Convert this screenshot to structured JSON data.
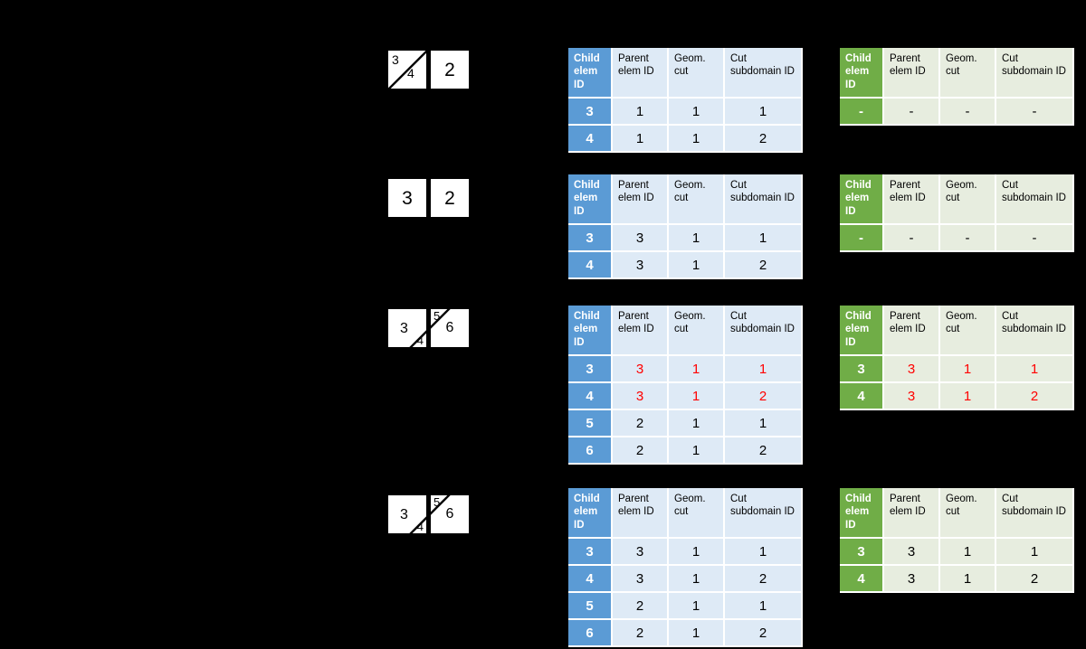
{
  "colors": {
    "background": "#000000",
    "element_fill": "#FFFFFF",
    "cut_line": "#000000",
    "blue_header": "#5B9BD5",
    "blue_body": "#DEEAF6",
    "green_header": "#70AD47",
    "green_body": "#E7EDDF",
    "highlight_red": "#FF0000"
  },
  "headers": [
    "Child elem ID",
    "Parent elem ID",
    "Geom. cut",
    "Cut subdomain ID"
  ],
  "groups": [
    {
      "diagram": {
        "left": {
          "cut": "diag",
          "labels": [
            {
              "text": "3",
              "pos": "tl"
            },
            {
              "text": "4",
              "pos": "lr"
            }
          ]
        },
        "right": {
          "cut": "none",
          "labels": [
            {
              "text": "2",
              "pos": "c"
            }
          ]
        }
      },
      "blue": [
        {
          "id": "3",
          "values": [
            "1",
            "1",
            "1"
          ],
          "red": false
        },
        {
          "id": "4",
          "values": [
            "1",
            "1",
            "2"
          ],
          "red": false
        }
      ],
      "green": [
        {
          "id": "-",
          "values": [
            "-",
            "-",
            "-"
          ],
          "red": false
        }
      ]
    },
    {
      "diagram": {
        "left": {
          "cut": "none",
          "labels": [
            {
              "text": "3",
              "pos": "c"
            }
          ]
        },
        "right": {
          "cut": "none",
          "labels": [
            {
              "text": "2",
              "pos": "c"
            }
          ]
        }
      },
      "blue": [
        {
          "id": "3",
          "values": [
            "3",
            "1",
            "1"
          ],
          "red": false
        },
        {
          "id": "4",
          "values": [
            "3",
            "1",
            "2"
          ],
          "red": false
        }
      ],
      "green": [
        {
          "id": "-",
          "values": [
            "-",
            "-",
            "-"
          ],
          "red": false
        }
      ]
    },
    {
      "diagram": {
        "left": {
          "cut": "corner-br",
          "labels": [
            {
              "text": "3",
              "pos": "cl"
            },
            {
              "text": "4",
              "pos": "br"
            }
          ]
        },
        "right": {
          "cut": "corner-tl",
          "labels": [
            {
              "text": "5",
              "pos": "ctl"
            },
            {
              "text": "6",
              "pos": "cs"
            }
          ]
        }
      },
      "blue": [
        {
          "id": "3",
          "values": [
            "3",
            "1",
            "1"
          ],
          "red": true
        },
        {
          "id": "4",
          "values": [
            "3",
            "1",
            "2"
          ],
          "red": true
        },
        {
          "id": "5",
          "values": [
            "2",
            "1",
            "1"
          ],
          "red": false
        },
        {
          "id": "6",
          "values": [
            "2",
            "1",
            "2"
          ],
          "red": false
        }
      ],
      "green": [
        {
          "id": "3",
          "values": [
            "3",
            "1",
            "1"
          ],
          "red": true
        },
        {
          "id": "4",
          "values": [
            "3",
            "1",
            "2"
          ],
          "red": true
        }
      ]
    },
    {
      "diagram": {
        "left": {
          "cut": "corner-br",
          "labels": [
            {
              "text": "3",
              "pos": "cl"
            },
            {
              "text": "4",
              "pos": "br"
            }
          ]
        },
        "right": {
          "cut": "corner-tl",
          "labels": [
            {
              "text": "5",
              "pos": "ctl"
            },
            {
              "text": "6",
              "pos": "cs"
            }
          ]
        }
      },
      "blue": [
        {
          "id": "3",
          "values": [
            "3",
            "1",
            "1"
          ],
          "red": false
        },
        {
          "id": "4",
          "values": [
            "3",
            "1",
            "2"
          ],
          "red": false
        },
        {
          "id": "5",
          "values": [
            "2",
            "1",
            "1"
          ],
          "red": false
        },
        {
          "id": "6",
          "values": [
            "2",
            "1",
            "2"
          ],
          "red": false
        }
      ],
      "green": [
        {
          "id": "3",
          "values": [
            "3",
            "1",
            "1"
          ],
          "red": false
        },
        {
          "id": "4",
          "values": [
            "3",
            "1",
            "2"
          ],
          "red": false
        }
      ]
    }
  ]
}
